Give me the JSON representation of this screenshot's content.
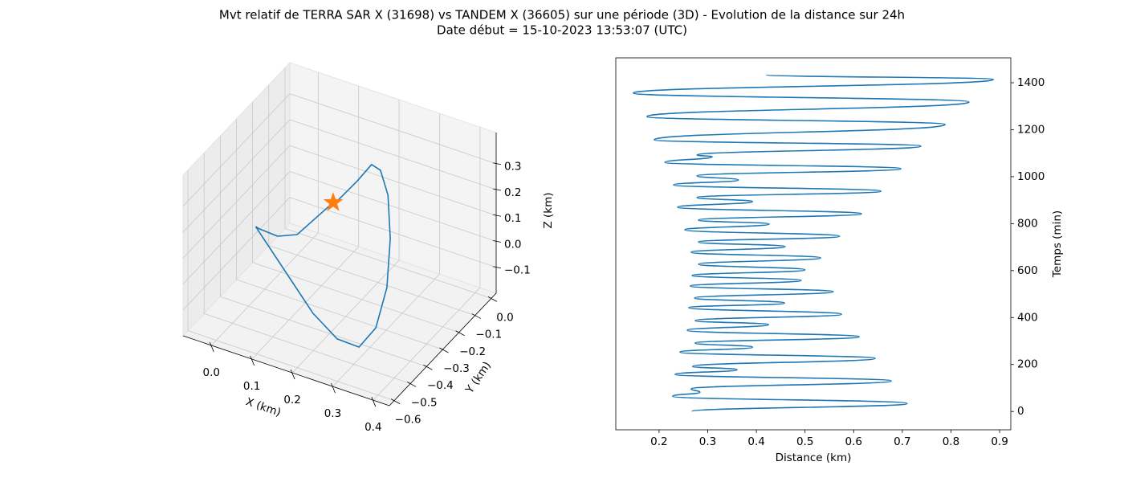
{
  "suptitle": [
    "Mvt relatif de TERRA SAR X (31698) vs TANDEM X (36605) sur une période (3D) - Evolution de la distance sur 24h",
    "Date début = 15-10-2023 13:53:07 (UTC)"
  ],
  "chart_data": [
    {
      "type": "line3d",
      "xlabel": "X (km)",
      "ylabel": "Y (km)",
      "zlabel": "Z (km)",
      "xlim": [
        -0.07,
        0.44
      ],
      "ylim": [
        -0.63,
        0.03
      ],
      "zlim": [
        -0.2,
        0.42
      ],
      "xticks": [
        {
          "value": 0,
          "label": "0.0"
        },
        0.1,
        0.2,
        0.3,
        0.4
      ],
      "yticks": [
        {
          "value": -0.6,
          "label": "−0.6"
        },
        {
          "value": -0.5,
          "label": "−0.5"
        },
        {
          "value": -0.4,
          "label": "−0.4"
        },
        {
          "value": -0.3,
          "label": "−0.3"
        },
        {
          "value": -0.2,
          "label": "−0.2"
        },
        {
          "value": -0.1,
          "label": "−0.1"
        },
        {
          "value": 0,
          "label": "0.0"
        }
      ],
      "zticks": [
        {
          "value": -0.1,
          "label": "−0.1"
        },
        {
          "value": 0,
          "label": "0.0"
        },
        0.1,
        0.2,
        0.3
      ],
      "grid": true,
      "series": [
        {
          "color": "#1f77b4",
          "x": [
            0.156,
            0.08,
            0.045,
            0.013,
            0.009,
            0.172,
            0.245,
            0.291,
            0.314,
            0.315,
            0.297,
            0.265,
            0.228,
            0.198,
            0.176,
            0.153
          ],
          "y": [
            -0.267,
            -0.3,
            -0.333,
            -0.366,
            -0.379,
            -0.432,
            -0.465,
            -0.445,
            -0.399,
            -0.333,
            -0.267,
            -0.201,
            -0.155,
            -0.135,
            -0.168,
            -0.234
          ],
          "z": [
            0.195,
            0.053,
            0.05,
            0.083,
            0.098,
            -0.115,
            -0.154,
            -0.174,
            -0.118,
            -0.006,
            0.13,
            0.237,
            0.284,
            0.277,
            0.224,
            0.178
          ]
        },
        {
          "color": "#ff7f0e",
          "marker": "star",
          "x": [
            0.156
          ],
          "y": [
            -0.267
          ],
          "z": [
            0.195
          ]
        }
      ]
    },
    {
      "type": "line",
      "xlabel": "Distance (km)",
      "ylabel": "Temps (min)",
      "yaxis_side": "right",
      "xlim": [
        0.111,
        0.923
      ],
      "ylim": [
        -78,
        1506
      ],
      "xticks": [
        0.2,
        0.3,
        0.4,
        0.5,
        0.6,
        0.7,
        0.8,
        0.9
      ],
      "yticks": [
        0,
        200,
        400,
        600,
        800,
        1000,
        1200,
        1400
      ],
      "color": "#1f77b4",
      "x": [
        0.268,
        0.71,
        0.228,
        0.284,
        0.266,
        0.677,
        0.233,
        0.36,
        0.269,
        0.644,
        0.243,
        0.392,
        0.274,
        0.611,
        0.258,
        0.425,
        0.274,
        0.575,
        0.261,
        0.458,
        0.273,
        0.558,
        0.264,
        0.492,
        0.268,
        0.5,
        0.281,
        0.532,
        0.266,
        0.459,
        0.281,
        0.571,
        0.253,
        0.426,
        0.281,
        0.616,
        0.238,
        0.392,
        0.278,
        0.656,
        0.23,
        0.363,
        0.278,
        0.697,
        0.212,
        0.309,
        0.278,
        0.738,
        0.19,
        0.788,
        0.175,
        0.837,
        0.147,
        0.887,
        0.421
      ],
      "values": [
        0,
        34,
        65,
        82,
        96,
        130,
        158,
        178,
        192,
        226,
        253,
        274,
        291,
        318,
        346,
        370,
        387,
        414,
        442,
        462,
        483,
        510,
        534,
        558,
        579,
        603,
        627,
        654,
        678,
        702,
        722,
        746,
        774,
        798,
        815,
        842,
        870,
        894,
        911,
        938,
        965,
        986,
        1003,
        1034,
        1061,
        1085,
        1092,
        1130,
        1157,
        1222,
        1256,
        1318,
        1356,
        1414,
        1434
      ]
    }
  ]
}
